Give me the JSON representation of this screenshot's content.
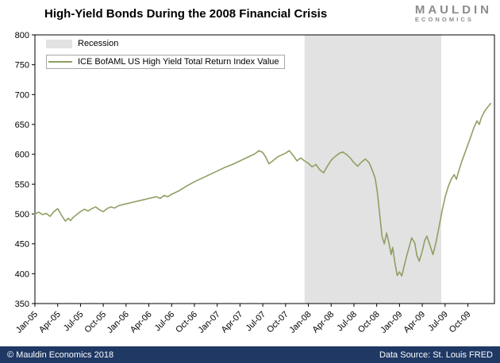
{
  "header": {
    "title": "High-Yield Bonds During the 2008 Financial Crisis",
    "logo": {
      "line1": "MAULDIN",
      "line2": "ECONOMICS"
    }
  },
  "legend": {
    "recession_label": "Recession",
    "series_label": "ICE BofAML US High Yield Total Return Index Value"
  },
  "footer": {
    "copyright": "© Mauldin Economics 2018",
    "source": "Data Source: St. Louis FRED"
  },
  "colors": {
    "line": "#8e9f63",
    "recession_band": "#e2e2e2",
    "footer_bg": "#1f3864",
    "logo_gray": "#8c8c8c",
    "axis": "#000000"
  },
  "chart_data": {
    "type": "line",
    "title": "High-Yield Bonds During the 2008 Financial Crisis",
    "grid": false,
    "legend_position": "top-left",
    "ylim": [
      350,
      800
    ],
    "yticks": [
      350,
      400,
      450,
      500,
      550,
      600,
      650,
      700,
      750,
      800
    ],
    "xlim": [
      0,
      60.5
    ],
    "x_unit": "months since Jan-2005",
    "xtick_pos": [
      0,
      3,
      6,
      9,
      12,
      15,
      18,
      21,
      24,
      27,
      30,
      33,
      36,
      39,
      42,
      45,
      48,
      51,
      54,
      57
    ],
    "xtick_labels": [
      "Jan-05",
      "Apr-05",
      "Jul-05",
      "Oct-05",
      "Jan-06",
      "Apr-06",
      "Jul-06",
      "Oct-06",
      "Jan-07",
      "Apr-07",
      "Jul-07",
      "Oct-07",
      "Jan-08",
      "Apr-08",
      "Jul-08",
      "Oct-08",
      "Jan-09",
      "Apr-09",
      "Jul-09",
      "Oct-09"
    ],
    "recession_band": {
      "start": 35.5,
      "end": 53.5,
      "label": "Recession"
    },
    "series": [
      {
        "name": "ICE BofAML US High Yield Total Return Index Value",
        "points": [
          [
            0,
            500
          ],
          [
            0.5,
            503
          ],
          [
            1,
            499
          ],
          [
            1.5,
            501
          ],
          [
            2,
            496
          ],
          [
            2.5,
            504
          ],
          [
            3,
            509
          ],
          [
            3.5,
            498
          ],
          [
            4,
            488
          ],
          [
            4.4,
            493
          ],
          [
            4.7,
            489
          ],
          [
            5,
            494
          ],
          [
            5.5,
            499
          ],
          [
            6,
            504
          ],
          [
            6.5,
            508
          ],
          [
            7,
            505
          ],
          [
            7.5,
            509
          ],
          [
            8,
            512
          ],
          [
            8.5,
            507
          ],
          [
            9,
            504
          ],
          [
            9.5,
            509
          ],
          [
            10,
            512
          ],
          [
            10.5,
            510
          ],
          [
            11,
            514
          ],
          [
            12,
            517
          ],
          [
            13,
            520
          ],
          [
            14,
            523
          ],
          [
            15,
            526
          ],
          [
            16,
            529
          ],
          [
            16.5,
            526
          ],
          [
            17,
            531
          ],
          [
            17.5,
            529
          ],
          [
            18,
            533
          ],
          [
            19,
            539
          ],
          [
            20,
            547
          ],
          [
            21,
            554
          ],
          [
            22,
            560
          ],
          [
            23,
            566
          ],
          [
            24,
            572
          ],
          [
            25,
            578
          ],
          [
            26,
            583
          ],
          [
            27,
            589
          ],
          [
            28,
            595
          ],
          [
            29,
            601
          ],
          [
            29.5,
            606
          ],
          [
            30,
            603
          ],
          [
            30.4,
            595
          ],
          [
            30.8,
            584
          ],
          [
            31.2,
            588
          ],
          [
            31.6,
            592
          ],
          [
            32,
            596
          ],
          [
            33,
            602
          ],
          [
            33.5,
            606
          ],
          [
            34,
            598
          ],
          [
            34.5,
            589
          ],
          [
            35,
            594
          ],
          [
            35.5,
            589
          ],
          [
            36,
            585
          ],
          [
            36.5,
            579
          ],
          [
            37,
            583
          ],
          [
            37.5,
            574
          ],
          [
            38,
            569
          ],
          [
            38.5,
            580
          ],
          [
            39,
            590
          ],
          [
            39.5,
            596
          ],
          [
            40,
            601
          ],
          [
            40.5,
            604
          ],
          [
            41,
            600
          ],
          [
            41.5,
            594
          ],
          [
            42,
            586
          ],
          [
            42.5,
            580
          ],
          [
            43,
            587
          ],
          [
            43.5,
            592
          ],
          [
            44,
            586
          ],
          [
            44.4,
            574
          ],
          [
            44.8,
            560
          ],
          [
            45.1,
            535
          ],
          [
            45.4,
            498
          ],
          [
            45.7,
            462
          ],
          [
            46,
            450
          ],
          [
            46.3,
            468
          ],
          [
            46.6,
            452
          ],
          [
            46.9,
            432
          ],
          [
            47.1,
            444
          ],
          [
            47.4,
            418
          ],
          [
            47.7,
            397
          ],
          [
            48,
            403
          ],
          [
            48.3,
            396
          ],
          [
            48.6,
            412
          ],
          [
            49,
            432
          ],
          [
            49.3,
            446
          ],
          [
            49.6,
            460
          ],
          [
            50,
            452
          ],
          [
            50.3,
            430
          ],
          [
            50.6,
            421
          ],
          [
            51,
            438
          ],
          [
            51.3,
            455
          ],
          [
            51.6,
            463
          ],
          [
            52,
            448
          ],
          [
            52.4,
            432
          ],
          [
            52.8,
            452
          ],
          [
            53.2,
            478
          ],
          [
            53.6,
            505
          ],
          [
            54,
            528
          ],
          [
            54.4,
            545
          ],
          [
            54.8,
            558
          ],
          [
            55.2,
            566
          ],
          [
            55.5,
            558
          ],
          [
            55.8,
            572
          ],
          [
            56.2,
            588
          ],
          [
            56.6,
            602
          ],
          [
            57,
            616
          ],
          [
            57.4,
            630
          ],
          [
            57.8,
            645
          ],
          [
            58.2,
            656
          ],
          [
            58.5,
            650
          ],
          [
            58.8,
            662
          ],
          [
            59.2,
            672
          ],
          [
            59.6,
            679
          ],
          [
            60,
            685
          ]
        ]
      }
    ]
  }
}
